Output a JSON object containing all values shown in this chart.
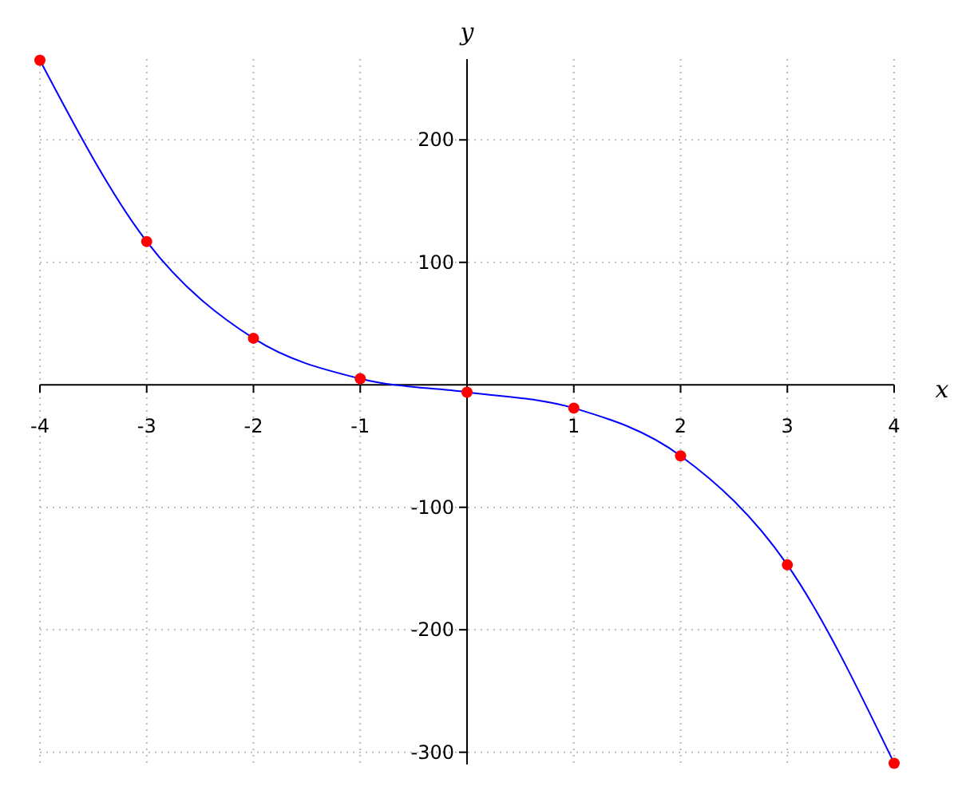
{
  "chart_data": {
    "type": "line",
    "xlabel": "x",
    "ylabel": "y",
    "x": [
      -4,
      -3,
      -2,
      -1,
      0,
      1,
      2,
      3,
      4
    ],
    "series": [
      {
        "color": "#0000ff",
        "values": [
          265,
          117,
          38,
          5,
          -6,
          -19,
          -58,
          -147,
          -309
        ]
      },
      {
        "type": "scatter",
        "marker": "circle",
        "color": "#ff0000",
        "values": [
          265,
          117,
          38,
          5,
          -6,
          -19,
          -58,
          -147,
          -309
        ]
      }
    ],
    "xlim": [
      -4,
      4
    ],
    "ylim": [
      -310,
      266
    ],
    "xticks": [
      -4,
      -3,
      -2,
      -1,
      1,
      2,
      3,
      4
    ],
    "yticks": [
      -300,
      -200,
      -100,
      100,
      200
    ],
    "grid": true
  }
}
